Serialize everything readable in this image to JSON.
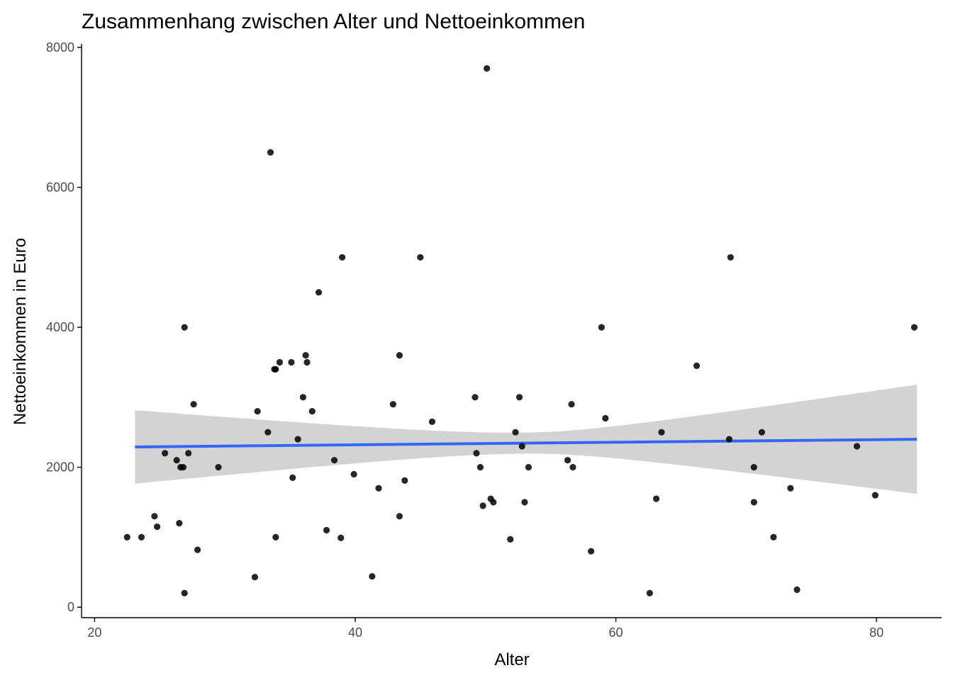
{
  "chart_data": {
    "type": "scatter",
    "title": "Zusammenhang zwischen Alter und Nettoeinkommen",
    "xlabel": "Alter",
    "ylabel": "Nettoeinkommen in Euro",
    "xlim": [
      19,
      85
    ],
    "ylim": [
      -150,
      8050
    ],
    "xticks": [
      20,
      40,
      60,
      80
    ],
    "yticks": [
      0,
      2000,
      4000,
      6000,
      8000
    ],
    "grid": false,
    "legend": "none",
    "colors": {
      "points": "#000000",
      "smooth_line": "#3366FF",
      "confidence_band": "#D3D3D3",
      "axis": "#000000",
      "tick_text": "#4d4d4d"
    },
    "points": [
      [
        22.5,
        1000
      ],
      [
        23.6,
        1000
      ],
      [
        24.6,
        1300
      ],
      [
        24.8,
        1150
      ],
      [
        25.4,
        2200
      ],
      [
        26.3,
        2100
      ],
      [
        26.5,
        1200
      ],
      [
        26.6,
        2000
      ],
      [
        26.8,
        2000
      ],
      [
        26.9,
        4000
      ],
      [
        26.9,
        200
      ],
      [
        27.2,
        2200
      ],
      [
        27.6,
        2900
      ],
      [
        27.9,
        820
      ],
      [
        29.5,
        2000
      ],
      [
        32.3,
        430
      ],
      [
        32.5,
        2800
      ],
      [
        33.3,
        2500
      ],
      [
        33.5,
        6500
      ],
      [
        33.8,
        3400
      ],
      [
        33.9,
        3400
      ],
      [
        33.9,
        1000
      ],
      [
        34.2,
        3500
      ],
      [
        35.1,
        3500
      ],
      [
        35.2,
        1850
      ],
      [
        35.6,
        2400
      ],
      [
        36.0,
        3000
      ],
      [
        36.2,
        3600
      ],
      [
        36.3,
        3500
      ],
      [
        36.7,
        2800
      ],
      [
        37.2,
        4500
      ],
      [
        37.8,
        1100
      ],
      [
        38.4,
        2100
      ],
      [
        38.9,
        990
      ],
      [
        39.0,
        5000
      ],
      [
        39.9,
        1900
      ],
      [
        41.3,
        440
      ],
      [
        41.8,
        1700
      ],
      [
        42.9,
        2900
      ],
      [
        43.4,
        3600
      ],
      [
        43.4,
        1300
      ],
      [
        43.8,
        1810
      ],
      [
        45.0,
        5000
      ],
      [
        45.9,
        2650
      ],
      [
        49.2,
        3000
      ],
      [
        49.3,
        2200
      ],
      [
        49.6,
        2000
      ],
      [
        49.8,
        1450
      ],
      [
        50.1,
        7700
      ],
      [
        50.4,
        1550
      ],
      [
        50.6,
        1500
      ],
      [
        51.9,
        970
      ],
      [
        52.3,
        2500
      ],
      [
        52.6,
        3000
      ],
      [
        52.8,
        2300
      ],
      [
        53.0,
        1500
      ],
      [
        53.3,
        2000
      ],
      [
        56.3,
        2100
      ],
      [
        56.6,
        2900
      ],
      [
        56.7,
        2000
      ],
      [
        58.1,
        800
      ],
      [
        58.9,
        4000
      ],
      [
        59.2,
        2700
      ],
      [
        62.6,
        200
      ],
      [
        63.1,
        1550
      ],
      [
        63.5,
        2500
      ],
      [
        66.2,
        3450
      ],
      [
        68.7,
        2400
      ],
      [
        68.8,
        5000
      ],
      [
        70.6,
        2000
      ],
      [
        70.6,
        1500
      ],
      [
        71.2,
        2500
      ],
      [
        72.1,
        1000
      ],
      [
        73.4,
        1700
      ],
      [
        73.9,
        250
      ],
      [
        78.5,
        2300
      ],
      [
        79.9,
        1600
      ],
      [
        82.9,
        4000
      ]
    ],
    "smooth": {
      "method": "linear",
      "x": [
        23.1,
        83.1
      ],
      "y": [
        2290,
        2400
      ],
      "ci_lower": [
        1770,
        1620
      ],
      "ci_upper": [
        2820,
        3180
      ]
    }
  }
}
